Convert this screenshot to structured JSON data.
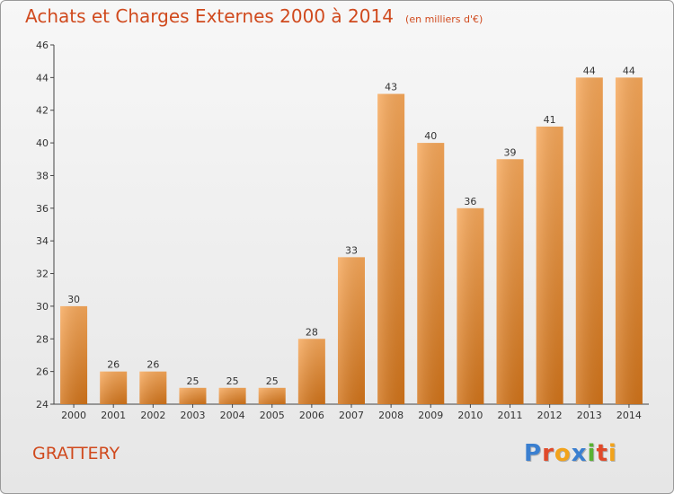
{
  "header": {
    "title": "Achats et Charges Externes 2000 à 2014",
    "unit": "(en milliers d'€)"
  },
  "footer": {
    "commune": "GRATTERY",
    "logo_text": "Proxiti",
    "logo_colors": [
      "#3a7fd0",
      "#e04a2a",
      "#f2a31b",
      "#3a7fd0",
      "#59b232",
      "#e04a2a",
      "#f2a31b"
    ]
  },
  "colors": {
    "title": "#d04a1e",
    "bar_light": "#f7a85a",
    "bar_dark": "#d2741a",
    "axis": "#444444",
    "grid": "#d8d8d8"
  },
  "chart_data": {
    "type": "bar",
    "title": "Achats et Charges Externes 2000 à 2014",
    "subtitle": "(en milliers d'€)",
    "categories": [
      "2000",
      "2001",
      "2002",
      "2003",
      "2004",
      "2005",
      "2006",
      "2007",
      "2008",
      "2009",
      "2010",
      "2011",
      "2012",
      "2013",
      "2014"
    ],
    "values": [
      30,
      26,
      26,
      25,
      25,
      25,
      28,
      33,
      43,
      40,
      36,
      39,
      41,
      44,
      44
    ],
    "ylim": [
      24,
      46
    ],
    "yticks": [
      24,
      26,
      28,
      30,
      32,
      34,
      36,
      38,
      40,
      42,
      44,
      46
    ],
    "grid": false,
    "data_labels": true
  }
}
